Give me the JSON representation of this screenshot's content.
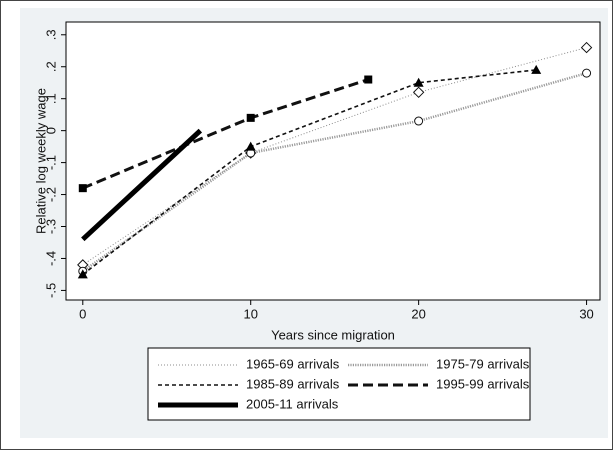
{
  "chart_data": {
    "type": "line",
    "x_label": "Years since migration",
    "y_label": "Relative log weekly wage",
    "xlim": [
      -1,
      30.8
    ],
    "ylim": [
      -0.53,
      0.34
    ],
    "xticks": [
      0,
      10,
      20,
      30
    ],
    "yticks": [
      {
        "value": 0.3,
        "label": ".3"
      },
      {
        "value": 0.2,
        "label": ".2"
      },
      {
        "value": 0.1,
        "label": ".1"
      },
      0,
      {
        "value": -0.1,
        "label": "-.1"
      },
      {
        "value": -0.2,
        "label": "-.2"
      },
      {
        "value": -0.3,
        "label": "-.3"
      },
      {
        "value": -0.4,
        "label": "-.4"
      },
      {
        "value": -0.5,
        "label": "-.5"
      }
    ],
    "series": [
      {
        "name": "1965-69 arrivals",
        "color": "#8c8c8c",
        "width": 1,
        "dash": "1 2",
        "marker": "diamond",
        "x": [
          0,
          10,
          20,
          30
        ],
        "values": [
          -0.42,
          -0.07,
          0.12,
          0.26
        ]
      },
      {
        "name": "1975-79 arrivals",
        "color": "#9a9a9a",
        "width": 2.5,
        "dash": "1.2 1.2",
        "marker": "circle",
        "x": [
          0,
          10,
          20,
          30
        ],
        "values": [
          -0.44,
          -0.07,
          0.03,
          0.18
        ]
      },
      {
        "name": "1985-89 arrivals",
        "color": "#111111",
        "width": 1.6,
        "dash": "4 3",
        "marker": "triangle",
        "x": [
          0,
          10,
          20,
          27
        ],
        "values": [
          -0.45,
          -0.05,
          0.15,
          0.19
        ]
      },
      {
        "name": "1995-99 arrivals",
        "color": "#111111",
        "width": 3,
        "dash": "10 5",
        "marker": "square",
        "x": [
          0,
          10,
          17
        ],
        "values": [
          -0.18,
          0.04,
          0.16
        ]
      },
      {
        "name": "2005-11 arrivals",
        "color": "#000000",
        "width": 5,
        "dash": "none",
        "marker": "none",
        "x": [
          0,
          7
        ],
        "values": [
          -0.34,
          0.0
        ]
      }
    ]
  }
}
